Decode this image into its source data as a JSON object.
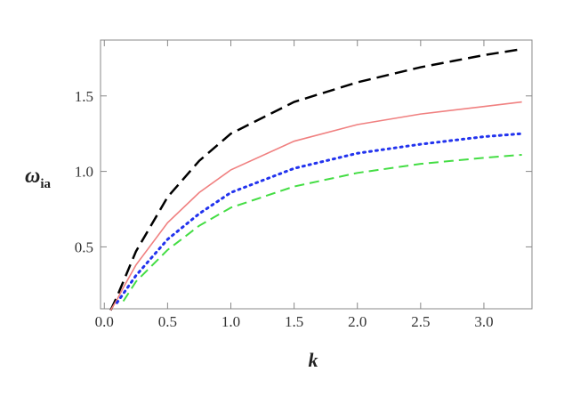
{
  "chart_data": {
    "type": "line",
    "xlabel": "k",
    "ylabel": {
      "symbol": "ω",
      "subscript": "ia"
    },
    "x": [
      0.05,
      0.1,
      0.15,
      0.25,
      0.5,
      0.75,
      1,
      1.5,
      2,
      2.5,
      3,
      3.3
    ],
    "series": [
      {
        "color": "#000000",
        "dash": "14,7",
        "width": 2.5,
        "values": [
          0.08,
          0.17,
          0.27,
          0.47,
          0.83,
          1.07,
          1.25,
          1.46,
          1.59,
          1.69,
          1.77,
          1.81
        ]
      },
      {
        "color": "#f08080",
        "dash": "",
        "width": 1.6,
        "values": [
          0.08,
          0.15,
          0.23,
          0.38,
          0.66,
          0.86,
          1.01,
          1.2,
          1.31,
          1.38,
          1.43,
          1.46
        ]
      },
      {
        "color": "#2233ee",
        "dash": "2,5",
        "width": 3,
        "values": [
          null,
          0.13,
          0.19,
          0.31,
          0.55,
          0.72,
          0.86,
          1.02,
          1.12,
          1.18,
          1.23,
          1.25
        ]
      },
      {
        "color": "#44dd44",
        "dash": "11,6",
        "width": 2,
        "values": [
          null,
          null,
          0.14,
          0.27,
          0.48,
          0.64,
          0.76,
          0.9,
          0.99,
          1.05,
          1.09,
          1.11
        ]
      }
    ],
    "xlim": [
      -0.03,
      3.38
    ],
    "ylim": [
      0.09,
      1.87
    ],
    "xticks": [
      {
        "value": 0,
        "label": "0.0"
      },
      {
        "value": 0.5,
        "label": "0.5"
      },
      {
        "value": 1,
        "label": "1.0"
      },
      {
        "value": 1.5,
        "label": "1.5"
      },
      {
        "value": 2,
        "label": "2.0"
      },
      {
        "value": 2.5,
        "label": "2.5"
      },
      {
        "value": 3,
        "label": "3.0"
      }
    ],
    "yticks": [
      0.5,
      {
        "value": 1,
        "label": "1.0"
      },
      1.5
    ]
  }
}
